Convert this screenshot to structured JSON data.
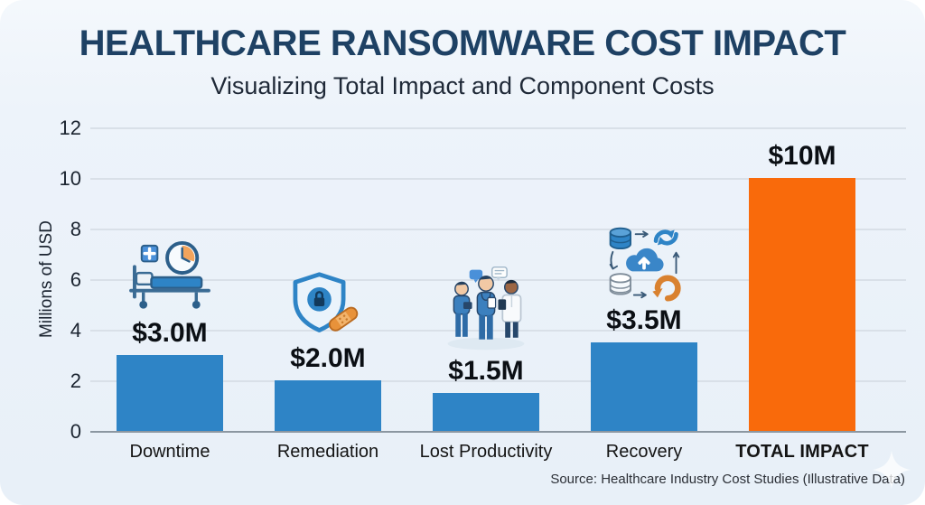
{
  "header": {
    "title": "HEALTHCARE RANSOMWARE COST IMPACT",
    "subtitle": "Visualizing Total Impact and Component Costs"
  },
  "chart_data": {
    "type": "bar",
    "title": "Healthcare Ransomware Cost Impact",
    "subtitle": "Visualizing Total Impact and Component Costs",
    "xlabel": "",
    "ylabel": "Millions of USD",
    "ylim": [
      0,
      12
    ],
    "yticks": [
      0,
      2,
      4,
      6,
      8,
      10,
      12
    ],
    "grid": true,
    "legend": "none",
    "categories": [
      "Downtime",
      "Remediation",
      "Lost Productivity",
      "Recovery",
      "TOTAL IMPACT"
    ],
    "values": [
      3.0,
      2.0,
      1.5,
      3.5,
      10.0
    ],
    "value_labels": [
      "$3.0M",
      "$2.0M",
      "$1.5M",
      "$3.5M",
      "$10M"
    ],
    "bar_colors": [
      "#2E84C6",
      "#2E84C6",
      "#2E84C6",
      "#2E84C6",
      "#F96A0B"
    ],
    "icons": [
      "hospital-bed-clock-icon",
      "shield-lock-bandage-icon",
      "medical-staff-icon",
      "data-recovery-cloud-icon",
      null
    ]
  },
  "footer": {
    "source": "Source: Healthcare Industry Cost Studies (Illustrative Data)"
  },
  "colors": {
    "bar_blue": "#2E84C6",
    "bar_orange": "#F96A0B",
    "background": "#E8F0F8",
    "gridline": "#D9E0E8",
    "axis_line": "#8C97A1",
    "title": "#1E4164",
    "text": "#1F2937"
  }
}
